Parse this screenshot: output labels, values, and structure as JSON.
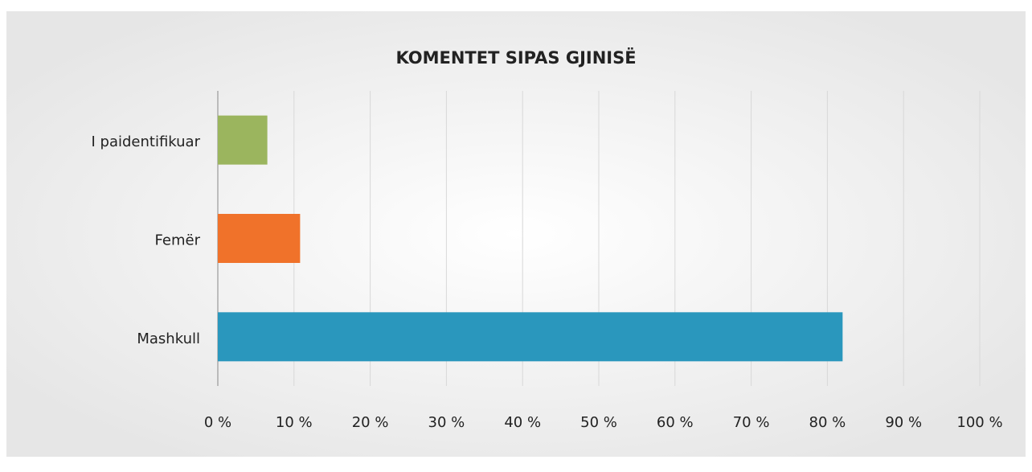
{
  "chart_data": {
    "type": "hbar",
    "title": "KOMENTET SIPAS GJINISË",
    "categories": [
      "I paidentifikuar",
      "Femër",
      "Mashkull"
    ],
    "values": [
      6.5,
      10.8,
      82
    ],
    "colors": [
      "#9bb55e",
      "#f0722a",
      "#2a97bd"
    ],
    "xlim": [
      0,
      100
    ],
    "xticks": [
      {
        "value": 0,
        "label": "0 %"
      },
      {
        "value": 10,
        "label": "10 %"
      },
      {
        "value": 20,
        "label": "20 %"
      },
      {
        "value": 30,
        "label": "30 %"
      },
      {
        "value": 40,
        "label": "40 %"
      },
      {
        "value": 50,
        "label": "50 %"
      },
      {
        "value": 60,
        "label": "60 %"
      },
      {
        "value": 70,
        "label": "70 %"
      },
      {
        "value": 80,
        "label": "80 %"
      },
      {
        "value": 90,
        "label": "90 %"
      },
      {
        "value": 100,
        "label": "100 %"
      }
    ],
    "grid": true
  }
}
